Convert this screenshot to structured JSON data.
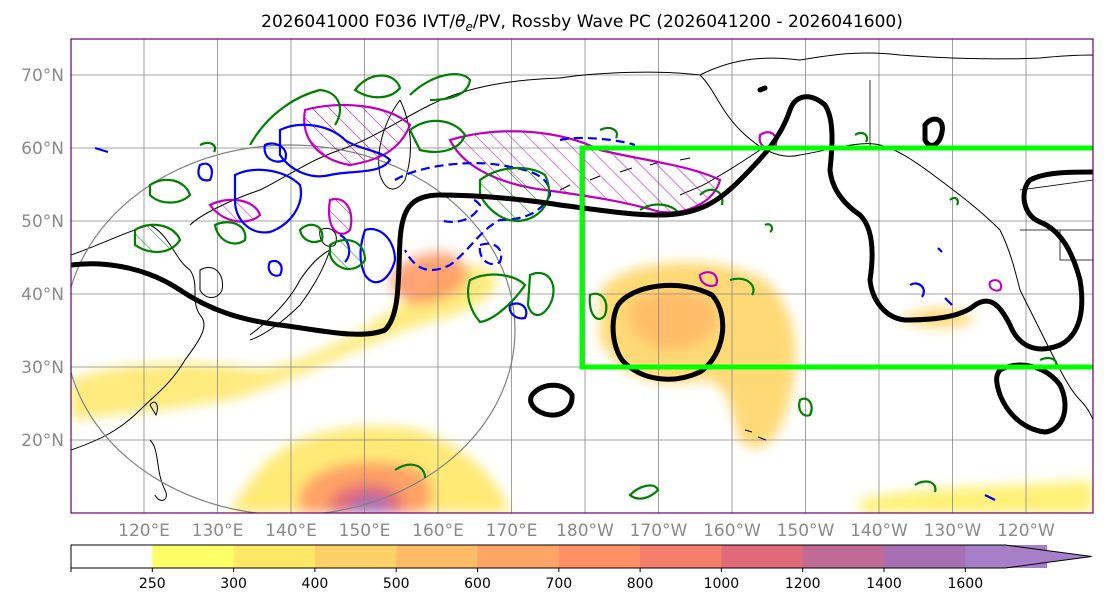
{
  "title": {
    "main": "2026041000 F036 IVT/",
    "theta_symbol": "θ",
    "theta_sub": "e",
    "rest": "/PV, Rossby Wave PC (2026041200 - 2026041600)"
  },
  "map": {
    "lat_labels": [
      "70°N",
      "60°N",
      "50°N",
      "40°N",
      "30°N",
      "20°N"
    ],
    "lon_labels": [
      "120°E",
      "130°E",
      "140°E",
      "150°E",
      "160°E",
      "170°E",
      "180°W",
      "170°W",
      "160°W",
      "150°W",
      "140°W",
      "130°W",
      "120°W"
    ],
    "colors": {
      "coast": "#000000",
      "theta_e_contour": "#000000",
      "pv_contour": "#008000",
      "blue_contour": "#0000ff",
      "magenta_contour": "#c000c0",
      "box": "#00ff00",
      "circle": "#808080",
      "grid": "#888888"
    }
  },
  "colorbar": {
    "levels": [
      "250",
      "300",
      "400",
      "500",
      "600",
      "700",
      "800",
      "1000",
      "1200",
      "1400",
      "1600"
    ],
    "colors": [
      "#ffff66",
      "#ffe866",
      "#ffd166",
      "#ffbb66",
      "#ffa566",
      "#ff9066",
      "#f57f6a",
      "#e06a78",
      "#c06a96",
      "#a76fb4",
      "#a67fc8"
    ]
  }
}
